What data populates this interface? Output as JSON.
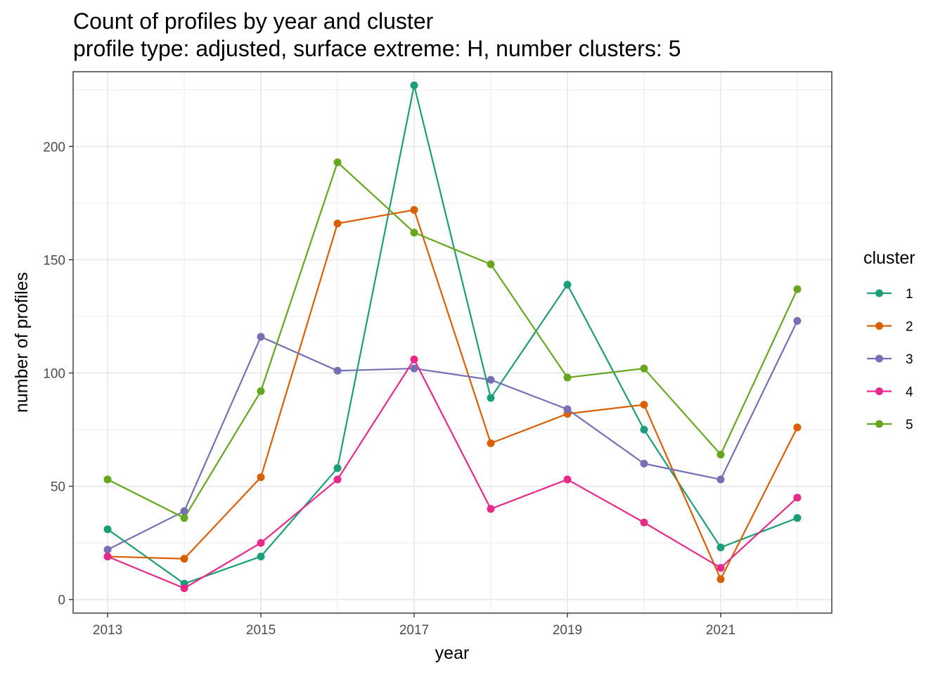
{
  "chart_data": {
    "type": "line",
    "title": "Count of profiles by year and cluster",
    "subtitle": "profile type: adjusted, surface extreme: H, number clusters: 5",
    "xlabel": "year",
    "ylabel": "number of profiles",
    "x": [
      2013,
      2014,
      2015,
      2016,
      2017,
      2018,
      2019,
      2020,
      2021,
      2022
    ],
    "xlim": [
      2012.55,
      2022.45
    ],
    "ylim": [
      -6,
      233
    ],
    "x_ticks": [
      2013,
      2015,
      2017,
      2019,
      2021
    ],
    "x_tick_labels": [
      "2013",
      "2015",
      "2017",
      "2019",
      "2021"
    ],
    "y_ticks": [
      0,
      50,
      100,
      150,
      200
    ],
    "y_tick_labels": [
      "0",
      "50",
      "100",
      "150",
      "200"
    ],
    "grid": true,
    "legend": {
      "title": "cluster",
      "position": "right"
    },
    "series": [
      {
        "name": "1",
        "color": "#1b9e77",
        "values": [
          31,
          7,
          19,
          58,
          227,
          89,
          139,
          75,
          23,
          36
        ]
      },
      {
        "name": "2",
        "color": "#d95f02",
        "values": [
          19,
          18,
          54,
          166,
          172,
          69,
          82,
          86,
          9,
          76
        ]
      },
      {
        "name": "3",
        "color": "#7570b3",
        "values": [
          22,
          39,
          116,
          101,
          102,
          97,
          84,
          60,
          53,
          123
        ]
      },
      {
        "name": "4",
        "color": "#e7298a",
        "values": [
          19,
          5,
          25,
          53,
          106,
          40,
          53,
          34,
          14,
          45
        ]
      },
      {
        "name": "5",
        "color": "#66a61e",
        "values": [
          53,
          36,
          92,
          193,
          162,
          148,
          98,
          102,
          64,
          137
        ]
      }
    ]
  }
}
